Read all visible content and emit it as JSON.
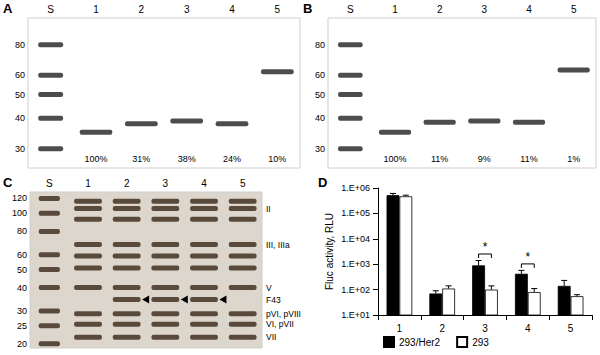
{
  "panel_labels": [
    "A",
    "B",
    "C",
    "D"
  ],
  "blots": [
    {
      "lanes": [
        "S",
        "1",
        "2",
        "3",
        "4",
        "5"
      ],
      "markers_kda": [
        80,
        60,
        50,
        40,
        30
      ],
      "kda_range": [
        25,
        103
      ],
      "bands_kda": [
        [
          35
        ],
        [
          38
        ],
        [
          39
        ],
        [
          38
        ],
        [
          62
        ]
      ],
      "percent_labels": [
        null,
        "100%",
        "31%",
        "38%",
        "24%",
        "10%"
      ]
    },
    {
      "lanes": [
        "S",
        "1",
        "2",
        "3",
        "4",
        "5"
      ],
      "markers_kda": [
        80,
        60,
        50,
        40,
        30
      ],
      "kda_range": [
        25,
        103
      ],
      "bands_kda": [
        [
          35
        ],
        [
          38.5
        ],
        [
          39
        ],
        [
          38.5
        ],
        [
          63
        ]
      ],
      "percent_labels": [
        null,
        "100%",
        "11%",
        "9%",
        "11%",
        "1%"
      ]
    },
    {
      "lanes": [
        "S",
        "1",
        "2",
        "3",
        "4",
        "5"
      ],
      "markers_kda": [
        120,
        100,
        80,
        60,
        50,
        40,
        30,
        25,
        20
      ],
      "kda_range": [
        19,
        130
      ],
      "bands_kda": [
        [
          116,
          106,
          93,
          68,
          59,
          51,
          40,
          29,
          25.5,
          21.7
        ],
        [
          116,
          106,
          93,
          68,
          59,
          51,
          40,
          34.5,
          29,
          25.5,
          21.7
        ],
        [
          116,
          106,
          93,
          68,
          59,
          51,
          40,
          34.5,
          29,
          25.5,
          21.7
        ],
        [
          116,
          106,
          93,
          68,
          59,
          51,
          40,
          34.5,
          29,
          25.5,
          21.7
        ],
        [
          116,
          106,
          93,
          68,
          59,
          51,
          40,
          29,
          25.5,
          21.7
        ]
      ],
      "protein_labels": [
        {
          "label": "II",
          "kda": 106
        },
        {
          "label": "III, IIIa",
          "kda": 68
        },
        {
          "label": "V",
          "kda": 40
        },
        {
          "label": "F43",
          "kda": 34.5
        },
        {
          "label": "pVI, pVIII",
          "kda": 29
        },
        {
          "label": "VI, pVII",
          "kda": 25.5
        },
        {
          "label": "VII",
          "kda": 21.7
        }
      ],
      "arrowheads": {
        "lanes": [
          "2",
          "3",
          "4"
        ],
        "kda": 34.5
      }
    }
  ],
  "chart_data": {
    "type": "bar",
    "categories": [
      "1",
      "2",
      "3",
      "4",
      "5"
    ],
    "ylabel": "Fluc activity, RLU",
    "log": "y",
    "ylim": [
      10,
      1000000
    ],
    "yticks": [
      {
        "value": 10,
        "label": "1.E+01"
      },
      {
        "value": 100,
        "label": "1.E+02"
      },
      {
        "value": 1000,
        "label": "1.E+03"
      },
      {
        "value": 10000,
        "label": "1.E+04"
      },
      {
        "value": 100000,
        "label": "1.E+05"
      },
      {
        "value": 1000000,
        "label": "1.E+06"
      }
    ],
    "grid": false,
    "legend": "bottom",
    "series": [
      {
        "name": "293/Her2",
        "color": "#000000",
        "values": [
          520000,
          70,
          900,
          420,
          140
        ],
        "errors": [
          90000,
          20,
          500,
          150,
          90
        ]
      },
      {
        "name": "293",
        "color": "#ffffff",
        "values": [
          470000,
          110,
          100,
          80,
          55
        ],
        "errors": [
          50000,
          30,
          40,
          30,
          8
        ]
      }
    ],
    "annotations": [
      {
        "text": "*",
        "category": "3"
      },
      {
        "text": "*",
        "category": "4"
      }
    ]
  }
}
